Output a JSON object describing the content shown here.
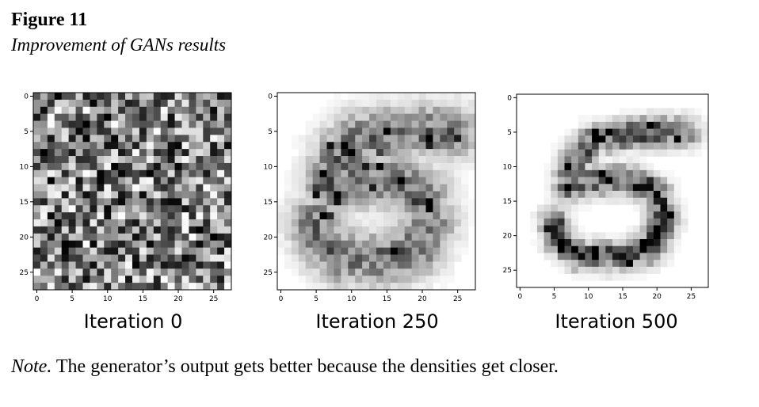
{
  "figure": {
    "label": "Figure 11",
    "title": "Improvement of GANs results"
  },
  "note": {
    "prefix": "Note.",
    "text": " The generator’s output gets better because the densities get closer."
  },
  "chart_data": [
    {
      "type": "heatmap",
      "caption": "Iteration 0",
      "content": "uniform random grayscale noise",
      "grid_size": 28,
      "x_ticks": [
        "0",
        "5",
        "10",
        "15",
        "20",
        "25"
      ],
      "y_ticks": [
        "0",
        "5",
        "10",
        "15",
        "20",
        "25"
      ],
      "colormap": "grayscale (darker = higher)"
    },
    {
      "type": "heatmap",
      "caption": "Iteration 250",
      "content": "blurry handwritten digit 5",
      "grid_size": 28,
      "x_ticks": [
        "0",
        "5",
        "10",
        "15",
        "20",
        "25"
      ],
      "y_ticks": [
        "0",
        "5",
        "10",
        "15",
        "20",
        "25"
      ],
      "colormap": "grayscale (darker = higher)"
    },
    {
      "type": "heatmap",
      "caption": "Iteration 500",
      "content": "sharper handwritten digit 5",
      "grid_size": 28,
      "x_ticks": [
        "0",
        "5",
        "10",
        "15",
        "20",
        "25"
      ],
      "y_ticks": [
        "0",
        "5",
        "10",
        "15",
        "20",
        "25"
      ],
      "colormap": "grayscale (darker = higher)"
    }
  ]
}
